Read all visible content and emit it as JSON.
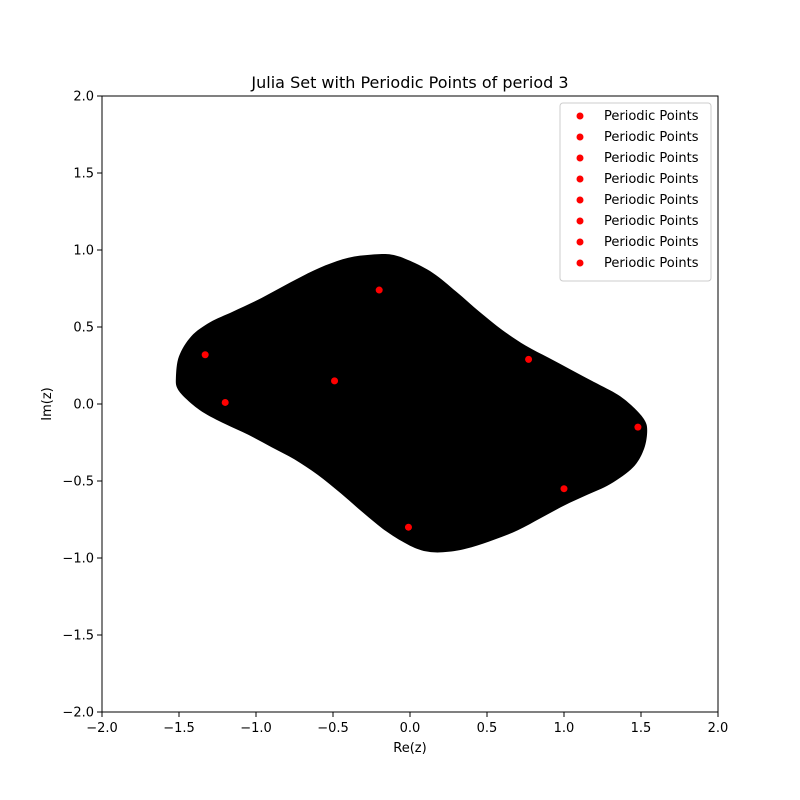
{
  "chart_data": {
    "type": "scatter",
    "title": "Julia Set with Periodic Points of period 3",
    "xlabel": "Re(z)",
    "ylabel": "Im(z)",
    "xlim": [
      -2.0,
      2.0
    ],
    "ylim": [
      -2.0,
      2.0
    ],
    "xticks": [
      "−2.0",
      "−1.5",
      "−1.0",
      "−0.5",
      "0.0",
      "0.5",
      "1.0",
      "1.5",
      "2.0"
    ],
    "yticks": [
      "−2.0",
      "−1.5",
      "−1.0",
      "−0.5",
      "0.0",
      "0.5",
      "1.0",
      "1.5",
      "2.0"
    ],
    "grid": false,
    "legend_position": "top-right",
    "julia_fill_color": "#000000",
    "point_color": "#ff0000",
    "julia_boundary": [
      [
        -1.52,
        0.17
      ],
      [
        -1.5,
        0.31
      ],
      [
        -1.42,
        0.44
      ],
      [
        -1.3,
        0.53
      ],
      [
        -1.15,
        0.6
      ],
      [
        -1.0,
        0.67
      ],
      [
        -0.85,
        0.75
      ],
      [
        -0.7,
        0.83
      ],
      [
        -0.55,
        0.9
      ],
      [
        -0.4,
        0.95
      ],
      [
        -0.25,
        0.97
      ],
      [
        -0.12,
        0.97
      ],
      [
        0.0,
        0.93
      ],
      [
        0.15,
        0.85
      ],
      [
        0.3,
        0.73
      ],
      [
        0.45,
        0.6
      ],
      [
        0.6,
        0.48
      ],
      [
        0.75,
        0.38
      ],
      [
        0.9,
        0.3
      ],
      [
        1.05,
        0.22
      ],
      [
        1.2,
        0.14
      ],
      [
        1.35,
        0.06
      ],
      [
        1.45,
        -0.02
      ],
      [
        1.52,
        -0.1
      ],
      [
        1.54,
        -0.17
      ],
      [
        1.52,
        -0.29
      ],
      [
        1.45,
        -0.41
      ],
      [
        1.3,
        -0.52
      ],
      [
        1.15,
        -0.59
      ],
      [
        1.0,
        -0.66
      ],
      [
        0.85,
        -0.74
      ],
      [
        0.7,
        -0.82
      ],
      [
        0.55,
        -0.88
      ],
      [
        0.4,
        -0.93
      ],
      [
        0.25,
        -0.96
      ],
      [
        0.12,
        -0.96
      ],
      [
        0.0,
        -0.92
      ],
      [
        -0.15,
        -0.83
      ],
      [
        -0.3,
        -0.71
      ],
      [
        -0.45,
        -0.58
      ],
      [
        -0.6,
        -0.46
      ],
      [
        -0.75,
        -0.36
      ],
      [
        -0.9,
        -0.28
      ],
      [
        -1.05,
        -0.2
      ],
      [
        -1.2,
        -0.13
      ],
      [
        -1.35,
        -0.05
      ],
      [
        -1.45,
        0.03
      ],
      [
        -1.51,
        0.1
      ]
    ],
    "series": [
      {
        "name": "Periodic Points",
        "points": [
          [
            -1.33,
            0.32
          ]
        ]
      },
      {
        "name": "Periodic Points",
        "points": [
          [
            -1.2,
            0.01
          ]
        ]
      },
      {
        "name": "Periodic Points",
        "points": [
          [
            -0.49,
            0.15
          ]
        ]
      },
      {
        "name": "Periodic Points",
        "points": [
          [
            -0.2,
            0.74
          ]
        ]
      },
      {
        "name": "Periodic Points",
        "points": [
          [
            -0.01,
            -0.8
          ]
        ]
      },
      {
        "name": "Periodic Points",
        "points": [
          [
            0.77,
            0.29
          ]
        ]
      },
      {
        "name": "Periodic Points",
        "points": [
          [
            1.0,
            -0.55
          ]
        ]
      },
      {
        "name": "Periodic Points",
        "points": [
          [
            1.48,
            -0.15
          ]
        ]
      }
    ]
  }
}
